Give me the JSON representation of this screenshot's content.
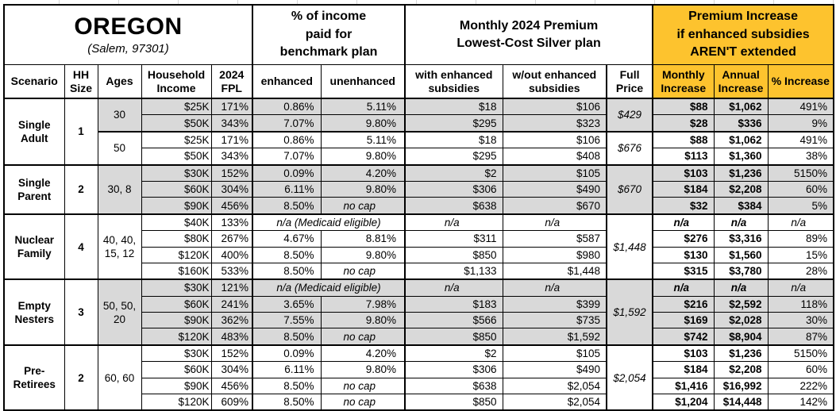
{
  "title": {
    "region": "OREGON",
    "location": "(Salem, 97301)"
  },
  "section_headers": {
    "benchmark": [
      "% of income",
      "paid for",
      "benchmark plan"
    ],
    "premium": [
      "Monthly 2024 Premium",
      "Lowest-Cost Silver plan"
    ],
    "increase": [
      "Premium Increase",
      "if enhanced subsidies",
      "AREN'T extended"
    ]
  },
  "column_headers": {
    "scenario": "Scenario",
    "hh_size": "HH Size",
    "ages": "Ages",
    "income": "Household Income",
    "fpl": "2024 FPL",
    "enhanced": "enhanced",
    "unenhanced": "unenhanced",
    "with_sub": "with enhanced subsidies",
    "wout_sub": "w/out enhanced subsidies",
    "full_price": "Full Price",
    "monthly": "Monthly Increase",
    "annual": "Annual Increase",
    "pct": "% Increase"
  },
  "colors": {
    "header_orange": "#FDC32E",
    "row_gray": "#D9D9D9"
  },
  "medicaid_note": "n/a (Medicaid eligible)",
  "na": "n/a",
  "no_cap": "no cap",
  "groups": [
    {
      "scenario": "Single Adult",
      "hh_size": "1",
      "sub_groups": [
        {
          "ages": "30",
          "shaded": true,
          "full_price": "$429",
          "rows": [
            {
              "income": "$25K",
              "fpl": "171%",
              "enhanced": "0.86%",
              "unenhanced": "5.11%",
              "with_sub": "$18",
              "wout_sub": "$106",
              "monthly": "$88",
              "annual": "$1,062",
              "pct": "491%"
            },
            {
              "income": "$50K",
              "fpl": "343%",
              "enhanced": "7.07%",
              "unenhanced": "9.80%",
              "with_sub": "$295",
              "wout_sub": "$323",
              "monthly": "$28",
              "annual": "$336",
              "pct": "9%"
            }
          ]
        },
        {
          "ages": "50",
          "shaded": false,
          "full_price": "$676",
          "rows": [
            {
              "income": "$25K",
              "fpl": "171%",
              "enhanced": "0.86%",
              "unenhanced": "5.11%",
              "with_sub": "$18",
              "wout_sub": "$106",
              "monthly": "$88",
              "annual": "$1,062",
              "pct": "491%"
            },
            {
              "income": "$50K",
              "fpl": "343%",
              "enhanced": "7.07%",
              "unenhanced": "9.80%",
              "with_sub": "$295",
              "wout_sub": "$408",
              "monthly": "$113",
              "annual": "$1,360",
              "pct": "38%"
            }
          ]
        }
      ]
    },
    {
      "scenario": "Single Parent",
      "hh_size": "2",
      "sub_groups": [
        {
          "ages": "30, 8",
          "shaded": true,
          "full_price": "$670",
          "rows": [
            {
              "income": "$30K",
              "fpl": "152%",
              "enhanced": "0.09%",
              "unenhanced": "4.20%",
              "with_sub": "$2",
              "wout_sub": "$105",
              "monthly": "$103",
              "annual": "$1,236",
              "pct": "5150%"
            },
            {
              "income": "$60K",
              "fpl": "304%",
              "enhanced": "6.11%",
              "unenhanced": "9.80%",
              "with_sub": "$306",
              "wout_sub": "$490",
              "monthly": "$184",
              "annual": "$2,208",
              "pct": "60%"
            },
            {
              "income": "$90K",
              "fpl": "456%",
              "enhanced": "8.50%",
              "unenhanced": "no cap",
              "with_sub": "$638",
              "wout_sub": "$670",
              "monthly": "$32",
              "annual": "$384",
              "pct": "5%"
            }
          ]
        }
      ]
    },
    {
      "scenario": "Nuclear Family",
      "hh_size": "4",
      "sub_groups": [
        {
          "ages": "40, 40, 15, 12",
          "shaded": false,
          "full_price": "$1,448",
          "rows": [
            {
              "income": "$40K",
              "fpl": "133%",
              "medicaid": true
            },
            {
              "income": "$80K",
              "fpl": "267%",
              "enhanced": "4.67%",
              "unenhanced": "8.81%",
              "with_sub": "$311",
              "wout_sub": "$587",
              "monthly": "$276",
              "annual": "$3,316",
              "pct": "89%"
            },
            {
              "income": "$120K",
              "fpl": "400%",
              "enhanced": "8.50%",
              "unenhanced": "9.80%",
              "with_sub": "$850",
              "wout_sub": "$980",
              "monthly": "$130",
              "annual": "$1,560",
              "pct": "15%"
            },
            {
              "income": "$160K",
              "fpl": "533%",
              "enhanced": "8.50%",
              "unenhanced": "no cap",
              "with_sub": "$1,133",
              "wout_sub": "$1,448",
              "monthly": "$315",
              "annual": "$3,780",
              "pct": "28%"
            }
          ]
        }
      ]
    },
    {
      "scenario": "Empty Nesters",
      "hh_size": "3",
      "sub_groups": [
        {
          "ages": "50, 50, 20",
          "shaded": true,
          "full_price": "$1,592",
          "rows": [
            {
              "income": "$30K",
              "fpl": "121%",
              "medicaid": true
            },
            {
              "income": "$60K",
              "fpl": "241%",
              "enhanced": "3.65%",
              "unenhanced": "7.98%",
              "with_sub": "$183",
              "wout_sub": "$399",
              "monthly": "$216",
              "annual": "$2,592",
              "pct": "118%"
            },
            {
              "income": "$90K",
              "fpl": "362%",
              "enhanced": "7.55%",
              "unenhanced": "9.80%",
              "with_sub": "$566",
              "wout_sub": "$735",
              "monthly": "$169",
              "annual": "$2,028",
              "pct": "30%"
            },
            {
              "income": "$120K",
              "fpl": "483%",
              "enhanced": "8.50%",
              "unenhanced": "no cap",
              "with_sub": "$850",
              "wout_sub": "$1,592",
              "monthly": "$742",
              "annual": "$8,904",
              "pct": "87%"
            }
          ]
        }
      ]
    },
    {
      "scenario": "Pre-Retirees",
      "hh_size": "2",
      "sub_groups": [
        {
          "ages": "60, 60",
          "shaded": false,
          "full_price": "$2,054",
          "rows": [
            {
              "income": "$30K",
              "fpl": "152%",
              "enhanced": "0.09%",
              "unenhanced": "4.20%",
              "with_sub": "$2",
              "wout_sub": "$105",
              "monthly": "$103",
              "annual": "$1,236",
              "pct": "5150%"
            },
            {
              "income": "$60K",
              "fpl": "304%",
              "enhanced": "6.11%",
              "unenhanced": "9.80%",
              "with_sub": "$306",
              "wout_sub": "$490",
              "monthly": "$184",
              "annual": "$2,208",
              "pct": "60%"
            },
            {
              "income": "$90K",
              "fpl": "456%",
              "enhanced": "8.50%",
              "unenhanced": "no cap",
              "with_sub": "$638",
              "wout_sub": "$2,054",
              "monthly": "$1,416",
              "annual": "$16,992",
              "pct": "222%"
            },
            {
              "income": "$120K",
              "fpl": "609%",
              "enhanced": "8.50%",
              "unenhanced": "no cap",
              "with_sub": "$850",
              "wout_sub": "$2,054",
              "monthly": "$1,204",
              "annual": "$14,448",
              "pct": "142%"
            }
          ]
        }
      ]
    }
  ]
}
